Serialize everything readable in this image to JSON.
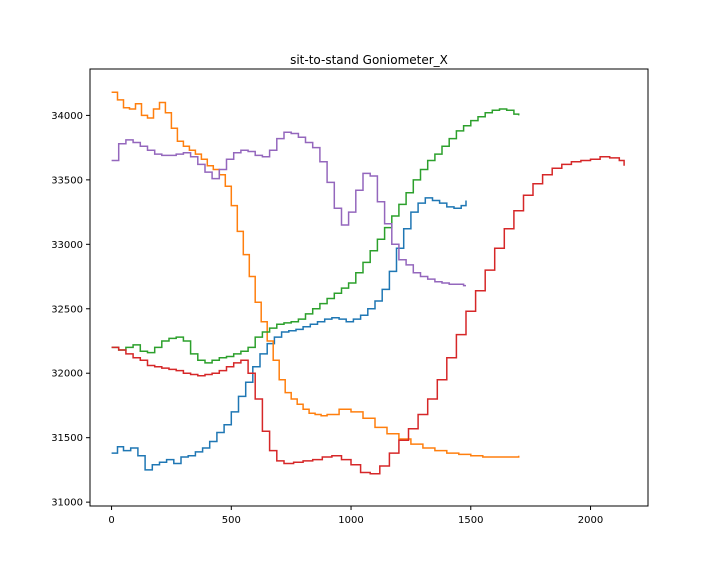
{
  "chart_data": {
    "type": "line",
    "title": "sit-to-stand Goniometer_X",
    "xlabel": "",
    "ylabel": "",
    "xlim": [
      -90,
      2240
    ],
    "ylim": [
      30970,
      34360
    ],
    "x_ticks": [
      0,
      500,
      1000,
      1500,
      2000
    ],
    "y_ticks": [
      31000,
      31500,
      32000,
      32500,
      33000,
      33500,
      34000
    ],
    "x_tick_labels": [
      "0",
      "500",
      "1000",
      "1500",
      "2000"
    ],
    "y_tick_labels": [
      "31000",
      "31500",
      "32000",
      "32500",
      "33000",
      "33500",
      "34000"
    ],
    "grid": false,
    "legend": "none",
    "line_style": "steps",
    "series": [
      {
        "color": "#1f77b4",
        "x": [
          0,
          25,
          50,
          80,
          110,
          140,
          170,
          200,
          230,
          260,
          290,
          320,
          350,
          380,
          410,
          440,
          470,
          500,
          530,
          560,
          590,
          620,
          650,
          680,
          710,
          740,
          770,
          800,
          830,
          860,
          890,
          920,
          950,
          980,
          1010,
          1040,
          1070,
          1100,
          1130,
          1160,
          1190,
          1220,
          1250,
          1280,
          1310,
          1340,
          1370,
          1400,
          1430,
          1460,
          1480
        ],
        "y": [
          31380,
          31430,
          31400,
          31420,
          31360,
          31250,
          31290,
          31310,
          31330,
          31300,
          31350,
          31360,
          31390,
          31420,
          31470,
          31540,
          31600,
          31700,
          31820,
          31930,
          32050,
          32150,
          32230,
          32280,
          32320,
          32330,
          32340,
          32360,
          32380,
          32400,
          32420,
          32430,
          32420,
          32400,
          32420,
          32450,
          32500,
          32560,
          32650,
          32790,
          32970,
          33120,
          33250,
          33320,
          33360,
          33340,
          33320,
          33290,
          33280,
          33300,
          33340
        ]
      },
      {
        "color": "#ff7f0e",
        "x": [
          0,
          25,
          50,
          75,
          100,
          125,
          150,
          175,
          200,
          225,
          250,
          275,
          300,
          325,
          350,
          375,
          400,
          425,
          450,
          475,
          500,
          525,
          550,
          575,
          600,
          625,
          650,
          675,
          700,
          725,
          750,
          775,
          800,
          825,
          850,
          875,
          900,
          950,
          1000,
          1050,
          1100,
          1150,
          1200,
          1250,
          1300,
          1350,
          1400,
          1450,
          1500,
          1550,
          1600,
          1650,
          1700
        ],
        "y": [
          34180,
          34120,
          34060,
          34050,
          34090,
          34000,
          33980,
          34050,
          34100,
          34020,
          33900,
          33800,
          33760,
          33730,
          33700,
          33660,
          33610,
          33580,
          33540,
          33450,
          33300,
          33100,
          32920,
          32750,
          32550,
          32400,
          32250,
          32100,
          31950,
          31850,
          31800,
          31760,
          31720,
          31690,
          31680,
          31670,
          31680,
          31720,
          31700,
          31650,
          31580,
          31530,
          31490,
          31450,
          31420,
          31400,
          31380,
          31370,
          31360,
          31350,
          31350,
          31350,
          31360
        ]
      },
      {
        "color": "#2ca02c",
        "x": [
          0,
          30,
          60,
          90,
          120,
          150,
          180,
          210,
          240,
          270,
          300,
          330,
          360,
          390,
          420,
          450,
          480,
          510,
          540,
          570,
          600,
          630,
          660,
          690,
          720,
          750,
          780,
          810,
          840,
          870,
          900,
          930,
          960,
          990,
          1020,
          1050,
          1080,
          1110,
          1140,
          1170,
          1200,
          1230,
          1260,
          1290,
          1320,
          1350,
          1380,
          1410,
          1440,
          1470,
          1500,
          1530,
          1560,
          1590,
          1620,
          1650,
          1680,
          1700
        ],
        "y": [
          32200,
          32180,
          32200,
          32220,
          32170,
          32160,
          32200,
          32250,
          32270,
          32280,
          32250,
          32150,
          32100,
          32080,
          32100,
          32120,
          32130,
          32150,
          32170,
          32200,
          32280,
          32320,
          32350,
          32380,
          32390,
          32400,
          32420,
          32460,
          32500,
          32540,
          32580,
          32620,
          32660,
          32700,
          32780,
          32860,
          32950,
          33040,
          33130,
          33220,
          33310,
          33400,
          33500,
          33580,
          33650,
          33700,
          33760,
          33820,
          33880,
          33920,
          33960,
          33990,
          34020,
          34040,
          34050,
          34040,
          34010,
          34000
        ]
      },
      {
        "color": "#d62728",
        "x": [
          0,
          30,
          60,
          90,
          120,
          150,
          180,
          210,
          240,
          270,
          300,
          330,
          360,
          390,
          420,
          450,
          480,
          510,
          540,
          570,
          600,
          630,
          660,
          690,
          720,
          760,
          800,
          840,
          880,
          920,
          960,
          1000,
          1040,
          1080,
          1120,
          1160,
          1200,
          1240,
          1280,
          1320,
          1360,
          1400,
          1440,
          1480,
          1520,
          1560,
          1600,
          1640,
          1680,
          1720,
          1760,
          1800,
          1840,
          1880,
          1920,
          1960,
          2000,
          2040,
          2080,
          2120,
          2140
        ],
        "y": [
          32200,
          32180,
          32150,
          32120,
          32100,
          32060,
          32050,
          32040,
          32030,
          32020,
          32000,
          31990,
          31980,
          31990,
          32000,
          32020,
          32050,
          32080,
          32100,
          32000,
          31800,
          31550,
          31400,
          31320,
          31300,
          31310,
          31320,
          31330,
          31350,
          31360,
          31330,
          31290,
          31230,
          31220,
          31280,
          31380,
          31480,
          31570,
          31680,
          31800,
          31950,
          32120,
          32300,
          32480,
          32640,
          32800,
          32970,
          33120,
          33260,
          33380,
          33470,
          33540,
          33590,
          33620,
          33640,
          33650,
          33660,
          33680,
          33670,
          33650,
          33610
        ]
      },
      {
        "color": "#9467bd",
        "x": [
          0,
          30,
          60,
          90,
          120,
          150,
          180,
          210,
          240,
          270,
          300,
          330,
          360,
          390,
          420,
          450,
          480,
          510,
          540,
          570,
          600,
          630,
          660,
          690,
          720,
          750,
          780,
          810,
          840,
          870,
          900,
          930,
          960,
          990,
          1020,
          1050,
          1080,
          1110,
          1140,
          1170,
          1200,
          1230,
          1260,
          1290,
          1320,
          1350,
          1380,
          1410,
          1440,
          1470,
          1480
        ],
        "y": [
          33650,
          33780,
          33810,
          33790,
          33760,
          33730,
          33700,
          33690,
          33690,
          33700,
          33710,
          33680,
          33620,
          33560,
          33510,
          33580,
          33660,
          33710,
          33730,
          33720,
          33690,
          33680,
          33730,
          33820,
          33870,
          33860,
          33830,
          33790,
          33750,
          33640,
          33480,
          33280,
          33150,
          33250,
          33420,
          33550,
          33530,
          33330,
          33160,
          33000,
          32880,
          32840,
          32780,
          32750,
          32730,
          32710,
          32700,
          32690,
          32690,
          32680,
          32680
        ]
      }
    ]
  }
}
